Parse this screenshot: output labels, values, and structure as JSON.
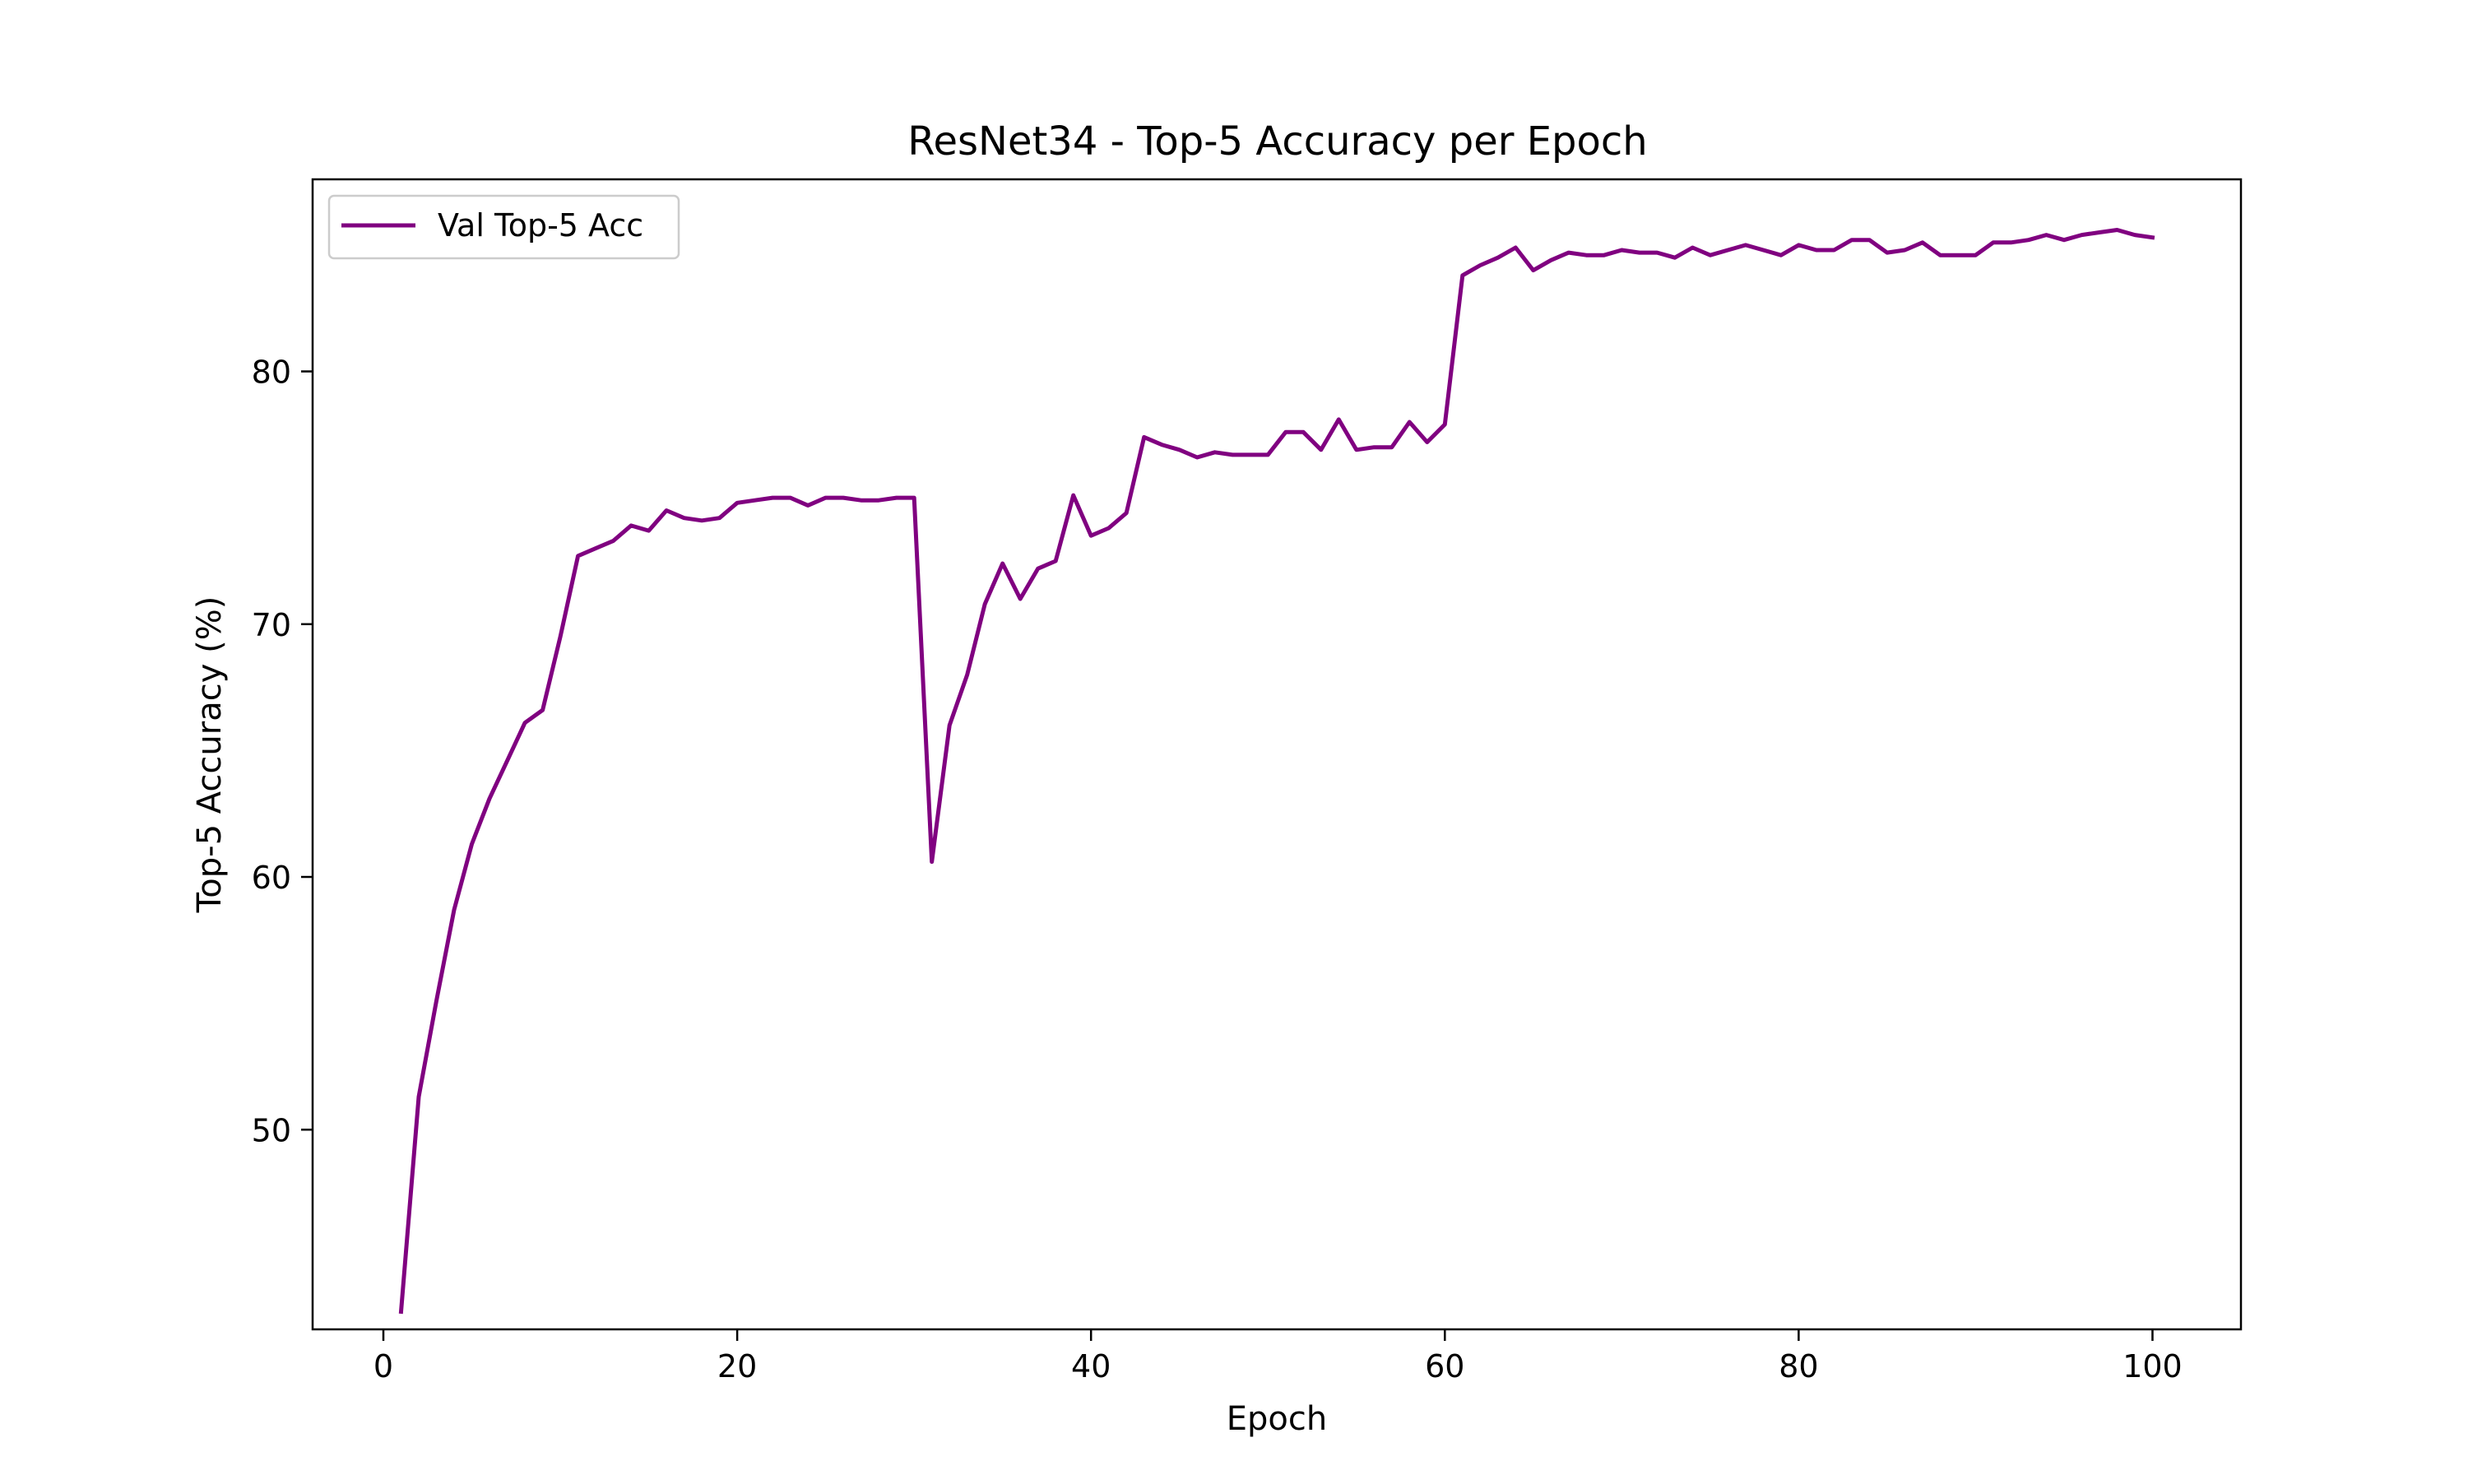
{
  "chart_data": {
    "type": "line",
    "title": "ResNet34 - Top-5 Accuracy per Epoch",
    "xlabel": "Epoch",
    "ylabel": "Top-5 Accuracy (%)",
    "xlim": [
      -4,
      105
    ],
    "ylim": [
      42.1,
      87.6
    ],
    "xticks": [
      0,
      20,
      40,
      60,
      80,
      100
    ],
    "yticks": [
      50,
      60,
      70,
      80
    ],
    "grid": false,
    "legend_position": "upper-left",
    "series": [
      {
        "name": "Val Top-5 Acc",
        "color": "#800080",
        "x": [
          1,
          2,
          3,
          4,
          5,
          6,
          7,
          8,
          9,
          10,
          11,
          12,
          13,
          14,
          15,
          16,
          17,
          18,
          19,
          20,
          21,
          22,
          23,
          24,
          25,
          26,
          27,
          28,
          29,
          30,
          31,
          32,
          33,
          34,
          35,
          36,
          37,
          38,
          39,
          40,
          41,
          42,
          43,
          44,
          45,
          46,
          47,
          48,
          49,
          50,
          51,
          52,
          53,
          54,
          55,
          56,
          57,
          58,
          59,
          60,
          61,
          62,
          63,
          64,
          65,
          66,
          67,
          68,
          69,
          70,
          71,
          72,
          73,
          74,
          75,
          76,
          77,
          78,
          79,
          80,
          81,
          82,
          83,
          84,
          85,
          86,
          87,
          88,
          89,
          90,
          91,
          92,
          93,
          94,
          95,
          96,
          97,
          98,
          99,
          100
        ],
        "values": [
          42.8,
          51.3,
          55.1,
          58.7,
          61.3,
          63.1,
          64.6,
          66.1,
          66.6,
          69.5,
          72.7,
          73.0,
          73.3,
          73.9,
          73.7,
          74.5,
          74.2,
          74.1,
          74.2,
          74.8,
          74.9,
          75.0,
          75.0,
          74.7,
          75.0,
          75.0,
          74.9,
          74.9,
          75.0,
          75.0,
          60.6,
          66.0,
          68.0,
          70.8,
          72.4,
          71.0,
          72.2,
          72.5,
          75.1,
          73.5,
          73.8,
          74.4,
          77.4,
          77.1,
          76.9,
          76.6,
          76.8,
          76.7,
          76.7,
          76.7,
          77.6,
          77.6,
          76.9,
          78.1,
          76.9,
          77.0,
          77.0,
          78.0,
          77.2,
          77.9,
          83.8,
          84.2,
          84.5,
          84.9,
          84.0,
          84.4,
          84.7,
          84.6,
          84.6,
          84.8,
          84.7,
          84.7,
          84.5,
          84.9,
          84.6,
          84.8,
          85.0,
          84.8,
          84.6,
          85.0,
          84.8,
          84.8,
          85.2,
          85.2,
          84.7,
          84.8,
          85.1,
          84.6,
          84.6,
          84.6,
          85.1,
          85.1,
          85.2,
          85.4,
          85.2,
          85.4,
          85.5,
          85.6,
          85.4,
          85.3
        ]
      }
    ]
  }
}
